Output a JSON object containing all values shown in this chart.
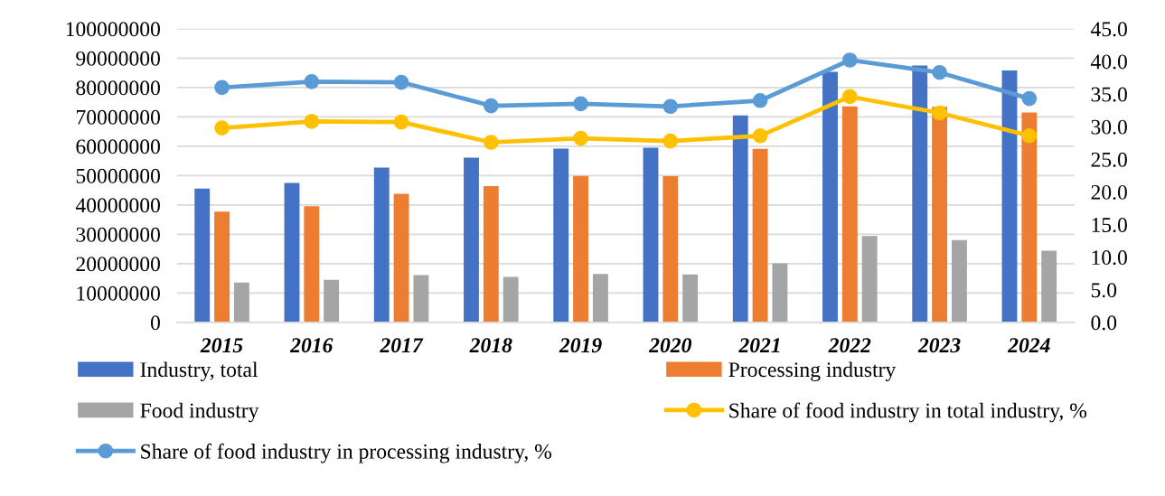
{
  "chart_data": {
    "type": "bar",
    "categories": [
      "2015",
      "2016",
      "2017",
      "2018",
      "2019",
      "2020",
      "2021",
      "2022",
      "2023",
      "2024"
    ],
    "series": [
      {
        "name": "Industry, total",
        "color": "#4472c4",
        "values": [
          45600000,
          47500000,
          52700000,
          56100000,
          59200000,
          59500000,
          70500000,
          85300000,
          87500000,
          85800000
        ]
      },
      {
        "name": "Processing industry",
        "color": "#ed7d31",
        "values": [
          37700000,
          39600000,
          43800000,
          46400000,
          49900000,
          49800000,
          59100000,
          73600000,
          73400000,
          71500000
        ]
      },
      {
        "name": "Food industry",
        "color": "#a5a5a5",
        "values": [
          13600000,
          14500000,
          16100000,
          15500000,
          16500000,
          16300000,
          20100000,
          29400000,
          28000000,
          24400000
        ]
      },
      {
        "name": "Share of food industry in total industry, %",
        "type": "line",
        "axis": "y2",
        "color": "#ffc000",
        "values": [
          29.8,
          30.8,
          30.7,
          27.6,
          28.2,
          27.8,
          28.6,
          34.6,
          32.1,
          28.6
        ]
      },
      {
        "name": "Share of food industry in processing industry, %",
        "type": "line",
        "axis": "y2",
        "color": "#5b9bd5",
        "values": [
          36.0,
          36.9,
          36.8,
          33.2,
          33.5,
          33.1,
          34.0,
          40.2,
          38.3,
          34.3
        ]
      }
    ],
    "ylim": [
      0,
      100000000
    ],
    "yticks": [
      0,
      10000000,
      20000000,
      30000000,
      40000000,
      50000000,
      60000000,
      70000000,
      80000000,
      90000000,
      100000000
    ],
    "y2lim": [
      0,
      45
    ],
    "y2ticks": [
      {
        "value": 0,
        "label": "0.0"
      },
      {
        "value": 5,
        "label": "5.0"
      },
      {
        "value": 10,
        "label": "10.0"
      },
      {
        "value": 15,
        "label": "15.0"
      },
      {
        "value": 20,
        "label": "20.0"
      },
      {
        "value": 25,
        "label": "25.0"
      },
      {
        "value": 30,
        "label": "30.0"
      },
      {
        "value": 35,
        "label": "35.0"
      },
      {
        "value": 40,
        "label": "40.0"
      },
      {
        "value": 45,
        "label": "45.0"
      }
    ],
    "grid": "y",
    "legend": "bottom",
    "marker": "circle"
  }
}
